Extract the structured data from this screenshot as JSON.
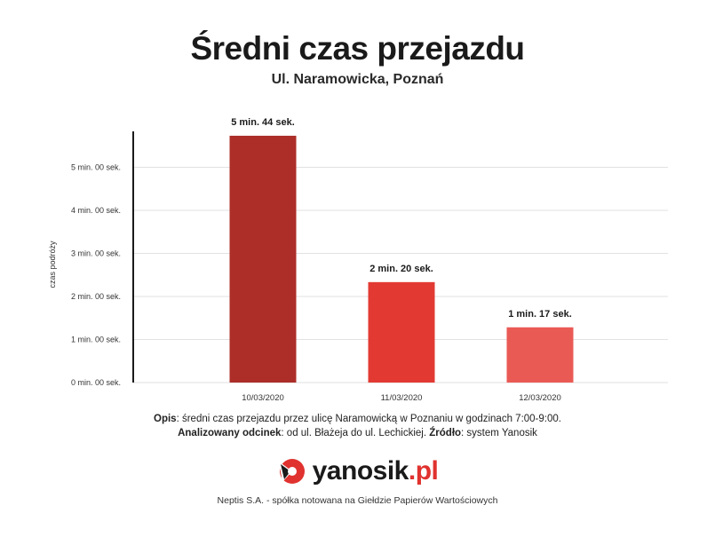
{
  "header": {
    "title": "Średni czas przejazdu",
    "subtitle": "Ul. Naramowicka, Poznań"
  },
  "chart_data": {
    "type": "bar",
    "categories": [
      "10/03/2020",
      "11/03/2020",
      "12/03/2020"
    ],
    "values": [
      344,
      140,
      77
    ],
    "value_labels": [
      "5 min. 44 sek.",
      "2 min. 20 sek.",
      "1 min. 17 sek."
    ],
    "ylabel": "czas podróży",
    "ylim": [
      0,
      360
    ],
    "yticks": [
      0,
      60,
      120,
      180,
      240,
      300
    ],
    "ytick_labels": [
      "0 min. 00 sek.",
      "1 min. 00 sek.",
      "2 min. 00 sek.",
      "3 min. 00 sek.",
      "4 min. 00 sek.",
      "5 min. 00 sek."
    ],
    "grid": true,
    "bar_colors": [
      "#ad2e29",
      "#e23a33",
      "#ea5a55"
    ]
  },
  "caption": {
    "opis_label": "Opis",
    "opis_text": ": średni czas przejazdu przez ulicę Naramowicką w Poznaniu w godzinach 7:00-9:00.",
    "odcinek_label": "Analizowany odcinek",
    "odcinek_text": ": od ul. Błażeja do ul. Lechickiej. ",
    "zrodlo_label": "Źródło",
    "zrodlo_text": ": system Yanosik"
  },
  "logo": {
    "name": "yanosik",
    "tld": ".pl",
    "icon": "yanosik-logo-icon",
    "accent_color": "#e0322f"
  },
  "footer": {
    "text": "Neptis S.A. - spółka notowana na Giełdzie Papierów Wartościowych"
  }
}
